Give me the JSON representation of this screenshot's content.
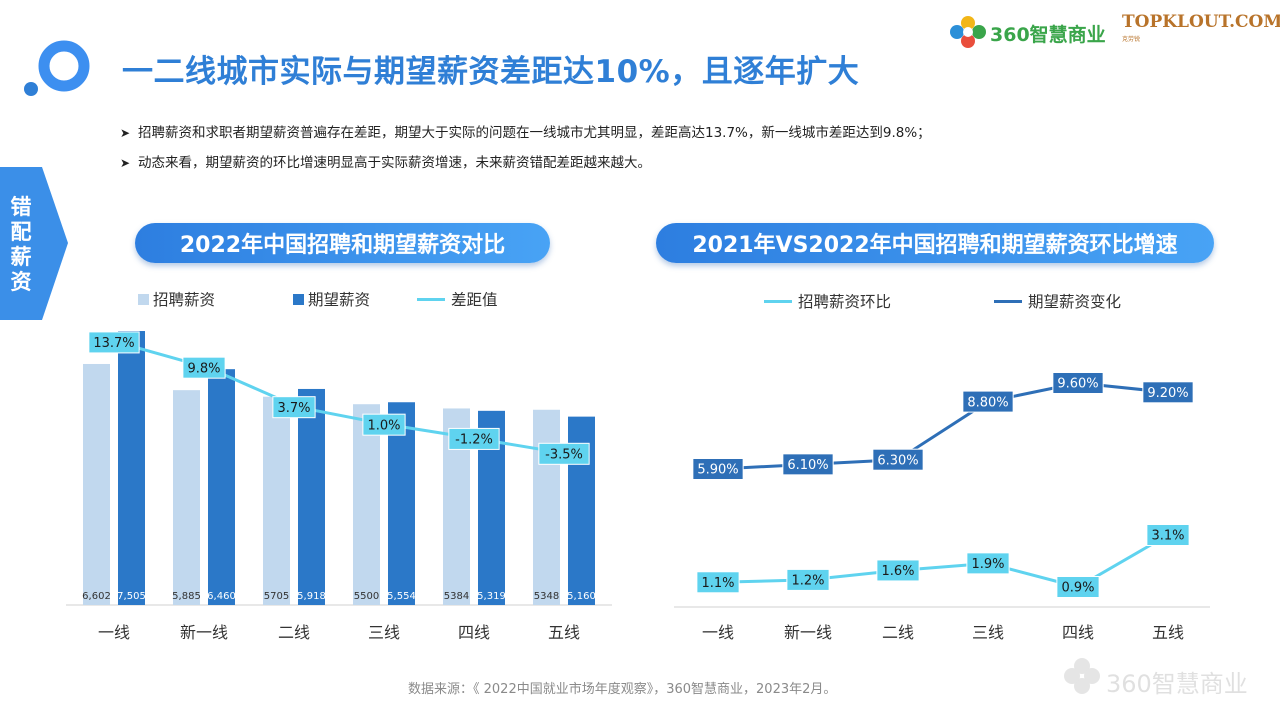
{
  "header": {
    "title": "一二线城市实际与期望薪资差距达10%，且逐年扩大",
    "logo_360_text": "360智慧商业",
    "logo_topklout_text": "TOPKLOUT.COM",
    "logo_topklout_sub": "克劳锐"
  },
  "side_tab": {
    "label": "错配薪资"
  },
  "bullets": [
    "招聘薪资和求职者期望薪资普遍存在差距，期望大于实际的问题在一线城市尤其明显，差距高达13.7%，新一线城市差距达到9.8%；",
    "动态来看，期望薪资的环比增速明显高于实际薪资增速，未来薪资错配差距越来越大。"
  ],
  "bullet_marker": "➤",
  "colors": {
    "accent": "#2f7fd6",
    "light_bar": "#c1d8ee",
    "dark_bar": "#2b78c8",
    "gap_line": "#5fd3ef",
    "expect_line": "#2e6fb7",
    "cyan_label": "#5fd3ef"
  },
  "chart_data": [
    {
      "type": "bar",
      "title": "2022年中国招聘和期望薪资对比",
      "categories": [
        "一线",
        "新一线",
        "二线",
        "三线",
        "四线",
        "五线"
      ],
      "series": [
        {
          "name": "招聘薪资",
          "values": [
            6602,
            5885,
            5705,
            5500,
            5384,
            5348
          ],
          "labels": [
            "6,602",
            "5,885",
            "5705",
            "5500",
            "5384",
            "5348"
          ]
        },
        {
          "name": "期望薪资",
          "values": [
            7505,
            6460,
            5918,
            5554,
            5319,
            5160
          ],
          "labels": [
            "7,505",
            "6,460",
            "5,918",
            "5,554",
            "5,319",
            "5,160"
          ]
        },
        {
          "name": "差距值",
          "type": "line",
          "values": [
            13.7,
            9.8,
            3.7,
            1.0,
            -1.2,
            -3.5
          ],
          "labels": [
            "13.7%",
            "9.8%",
            "3.7%",
            "1.0%",
            "-1.2%",
            "-3.5%"
          ]
        }
      ],
      "legend": "top",
      "grid": false
    },
    {
      "type": "line",
      "title": "2021年VS2022年中国招聘和期望薪资环比增速",
      "categories": [
        "一线",
        "新一线",
        "二线",
        "三线",
        "四线",
        "五线"
      ],
      "series": [
        {
          "name": "招聘薪资环比",
          "values": [
            1.1,
            1.2,
            1.6,
            1.9,
            0.9,
            3.1
          ],
          "labels": [
            "1.1%",
            "1.2%",
            "1.6%",
            "1.9%",
            "0.9%",
            "3.1%"
          ]
        },
        {
          "name": "期望薪资变化",
          "values": [
            5.9,
            6.1,
            6.3,
            8.8,
            9.6,
            9.2
          ],
          "labels": [
            "5.90%",
            "6.10%",
            "6.30%",
            "8.80%",
            "9.60%",
            "9.20%"
          ]
        }
      ],
      "legend": "top",
      "grid": false
    }
  ],
  "source": "数据来源：《 2022中国就业市场年度观察》，360智慧商业，2023年2月。",
  "watermark": "360智慧商业"
}
